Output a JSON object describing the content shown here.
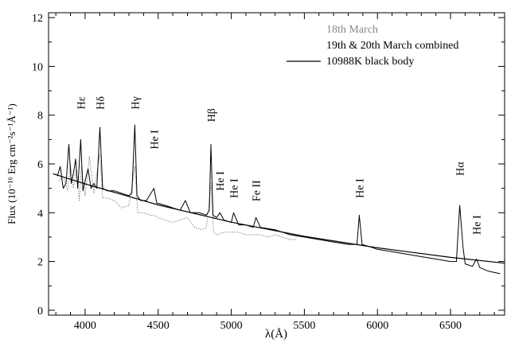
{
  "chart_data": {
    "type": "line",
    "title": "",
    "xlabel": "λ(Å)",
    "ylabel": "Flux (10⁻¹⁶ Erg cm⁻²s⁻¹Å⁻¹)",
    "xlim": [
      3750,
      6870
    ],
    "ylim": [
      -0.2,
      12.2
    ],
    "x_ticks": [
      4000,
      4500,
      5000,
      5500,
      6000,
      6500
    ],
    "y_ticks": [
      0,
      2,
      4,
      6,
      8,
      10,
      12
    ],
    "legend_position": "top-right",
    "series": [
      {
        "name": "18th March",
        "color": "#888888",
        "dash": "dotted",
        "points": [
          [
            3820,
            5.3
          ],
          [
            3850,
            5.5
          ],
          [
            3880,
            4.9
          ],
          [
            3900,
            6.0
          ],
          [
            3920,
            5.0
          ],
          [
            3940,
            5.8
          ],
          [
            3960,
            4.5
          ],
          [
            3975,
            5.9
          ],
          [
            4000,
            4.7
          ],
          [
            4030,
            6.3
          ],
          [
            4060,
            4.8
          ],
          [
            4100,
            6.4
          ],
          [
            4120,
            4.6
          ],
          [
            4150,
            4.6
          ],
          [
            4200,
            4.5
          ],
          [
            4250,
            4.2
          ],
          [
            4300,
            4.3
          ],
          [
            4340,
            5.9
          ],
          [
            4360,
            4.0
          ],
          [
            4400,
            4.0
          ],
          [
            4450,
            3.9
          ],
          [
            4470,
            3.9
          ],
          [
            4500,
            3.8
          ],
          [
            4550,
            3.7
          ],
          [
            4600,
            3.6
          ],
          [
            4650,
            3.7
          ],
          [
            4700,
            3.8
          ],
          [
            4750,
            3.4
          ],
          [
            4800,
            3.3
          ],
          [
            4830,
            3.4
          ],
          [
            4861,
            5.2
          ],
          [
            4880,
            3.2
          ],
          [
            4900,
            3.1
          ],
          [
            4950,
            3.2
          ],
          [
            5000,
            3.2
          ],
          [
            5050,
            3.2
          ],
          [
            5100,
            3.1
          ],
          [
            5150,
            3.1
          ],
          [
            5200,
            3.1
          ],
          [
            5250,
            3.0
          ],
          [
            5300,
            3.1
          ],
          [
            5350,
            3.0
          ],
          [
            5400,
            2.9
          ],
          [
            5450,
            2.9
          ]
        ]
      },
      {
        "name": "19th & 20th March combined",
        "color": "#000000",
        "dash": "solid",
        "points": [
          [
            3810,
            5.5
          ],
          [
            3830,
            5.9
          ],
          [
            3850,
            5.0
          ],
          [
            3870,
            5.2
          ],
          [
            3889,
            6.8
          ],
          [
            3905,
            5.2
          ],
          [
            3920,
            5.6
          ],
          [
            3935,
            6.2
          ],
          [
            3950,
            5.0
          ],
          [
            3970,
            7.0
          ],
          [
            3985,
            4.9
          ],
          [
            4000,
            5.3
          ],
          [
            4020,
            5.8
          ],
          [
            4040,
            5.0
          ],
          [
            4060,
            5.2
          ],
          [
            4080,
            5.0
          ],
          [
            4101,
            7.5
          ],
          [
            4120,
            5.0
          ],
          [
            4150,
            4.9
          ],
          [
            4200,
            4.9
          ],
          [
            4250,
            4.8
          ],
          [
            4300,
            4.7
          ],
          [
            4320,
            4.8
          ],
          [
            4340,
            7.6
          ],
          [
            4355,
            4.7
          ],
          [
            4380,
            4.5
          ],
          [
            4420,
            4.5
          ],
          [
            4471,
            5.0
          ],
          [
            4490,
            4.4
          ],
          [
            4550,
            4.3
          ],
          [
            4600,
            4.2
          ],
          [
            4650,
            4.1
          ],
          [
            4686,
            4.5
          ],
          [
            4720,
            4.0
          ],
          [
            4780,
            4.0
          ],
          [
            4830,
            3.9
          ],
          [
            4850,
            4.1
          ],
          [
            4861,
            6.8
          ],
          [
            4875,
            3.9
          ],
          [
            4900,
            3.8
          ],
          [
            4922,
            4.0
          ],
          [
            4950,
            3.7
          ],
          [
            5000,
            3.6
          ],
          [
            5016,
            4.0
          ],
          [
            5050,
            3.5
          ],
          [
            5100,
            3.5
          ],
          [
            5150,
            3.4
          ],
          [
            5169,
            3.8
          ],
          [
            5200,
            3.4
          ],
          [
            5300,
            3.3
          ],
          [
            5400,
            3.1
          ],
          [
            5500,
            3.0
          ],
          [
            5600,
            2.9
          ],
          [
            5700,
            2.8
          ],
          [
            5800,
            2.7
          ],
          [
            5860,
            2.7
          ],
          [
            5876,
            3.9
          ],
          [
            5895,
            2.7
          ],
          [
            5950,
            2.6
          ],
          [
            6000,
            2.5
          ],
          [
            6100,
            2.4
          ],
          [
            6200,
            2.3
          ],
          [
            6300,
            2.2
          ],
          [
            6400,
            2.1
          ],
          [
            6500,
            2.0
          ],
          [
            6540,
            2.0
          ],
          [
            6563,
            4.3
          ],
          [
            6585,
            2.6
          ],
          [
            6600,
            1.9
          ],
          [
            6650,
            1.8
          ],
          [
            6678,
            2.1
          ],
          [
            6700,
            1.75
          ],
          [
            6760,
            1.6
          ],
          [
            6800,
            1.55
          ],
          [
            6840,
            1.5
          ]
        ]
      },
      {
        "name": "10988K black body",
        "color": "#000000",
        "dash": "solid",
        "points": [
          [
            3780,
            5.6
          ],
          [
            4000,
            5.18
          ],
          [
            4500,
            4.32
          ],
          [
            5000,
            3.61
          ],
          [
            5500,
            3.03
          ],
          [
            6000,
            2.56
          ],
          [
            6500,
            2.17
          ],
          [
            6870,
            1.93
          ]
        ]
      }
    ],
    "annotations": [
      {
        "text": "Hε",
        "x": 3970,
        "y": 8.5
      },
      {
        "text": "Hδ",
        "x": 4101,
        "y": 8.5
      },
      {
        "text": "Hγ",
        "x": 4340,
        "y": 8.5
      },
      {
        "text": "He I",
        "x": 4471,
        "y": 7.0
      },
      {
        "text": "Hβ",
        "x": 4861,
        "y": 8.0
      },
      {
        "text": "He I",
        "x": 4922,
        "y": 5.3
      },
      {
        "text": "He I",
        "x": 5016,
        "y": 5.0
      },
      {
        "text": "Fe II",
        "x": 5169,
        "y": 4.9
      },
      {
        "text": "He I",
        "x": 5876,
        "y": 5.0
      },
      {
        "text": "Hα",
        "x": 6563,
        "y": 5.8
      },
      {
        "text": "He I",
        "x": 6678,
        "y": 3.5
      }
    ]
  }
}
